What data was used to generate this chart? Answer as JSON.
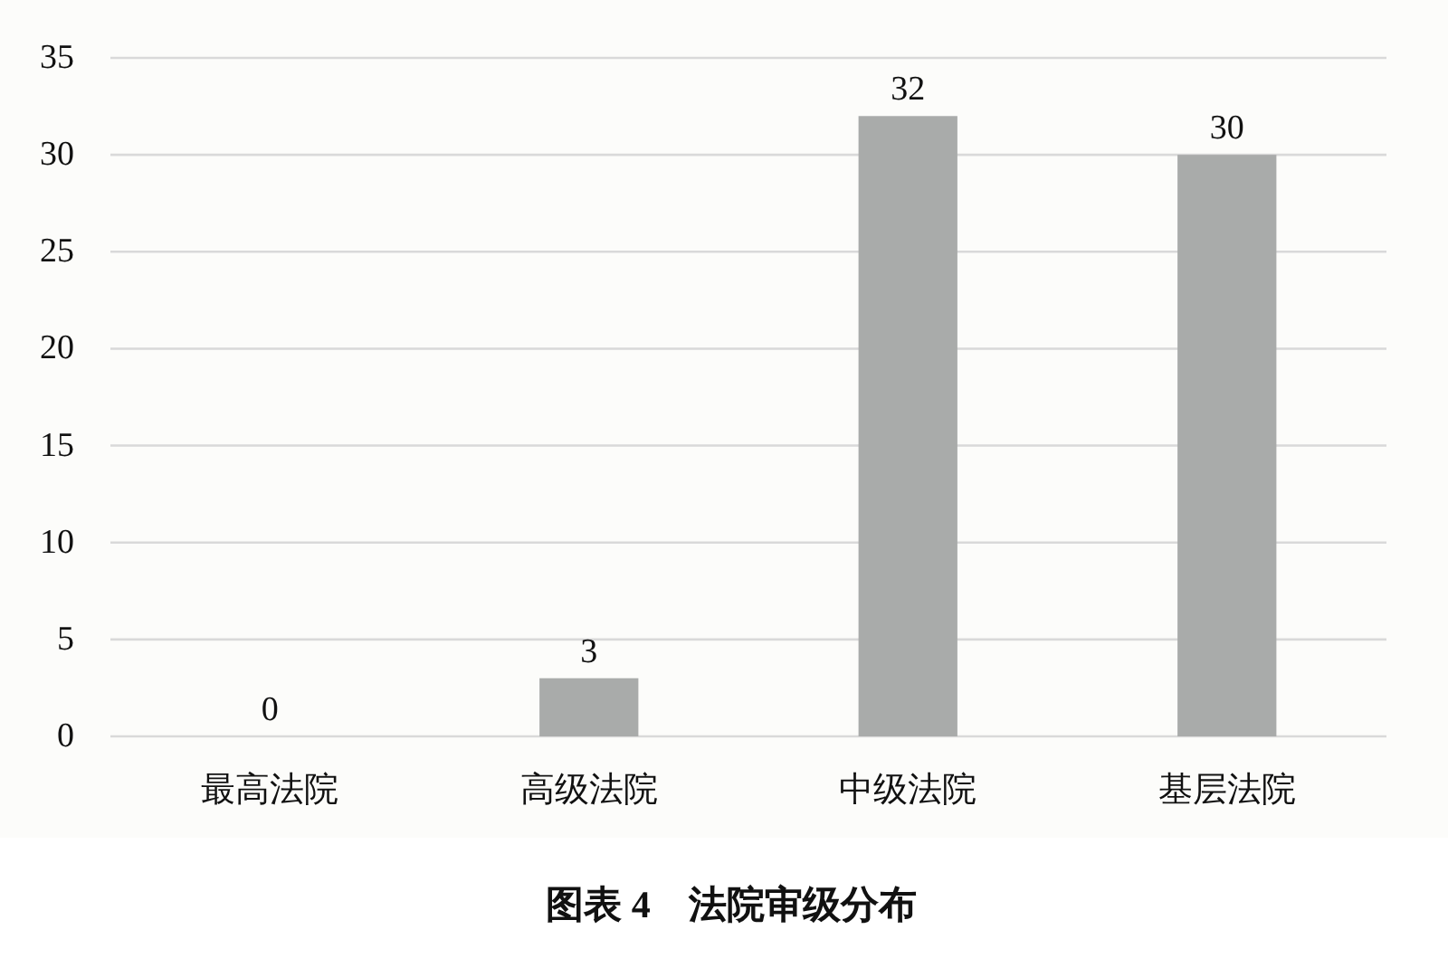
{
  "chart_data": {
    "type": "bar",
    "title": "图表 4　法院审级分布",
    "categories": [
      "最高法院",
      "高级法院",
      "中级法院",
      "基层法院"
    ],
    "values": [
      0,
      3,
      32,
      30
    ],
    "color": "#a9abaa",
    "ylim": [
      0,
      35
    ],
    "yticks": [
      0,
      5,
      10,
      15,
      20,
      25,
      30,
      35
    ],
    "grid": "y",
    "data_labels": true
  }
}
